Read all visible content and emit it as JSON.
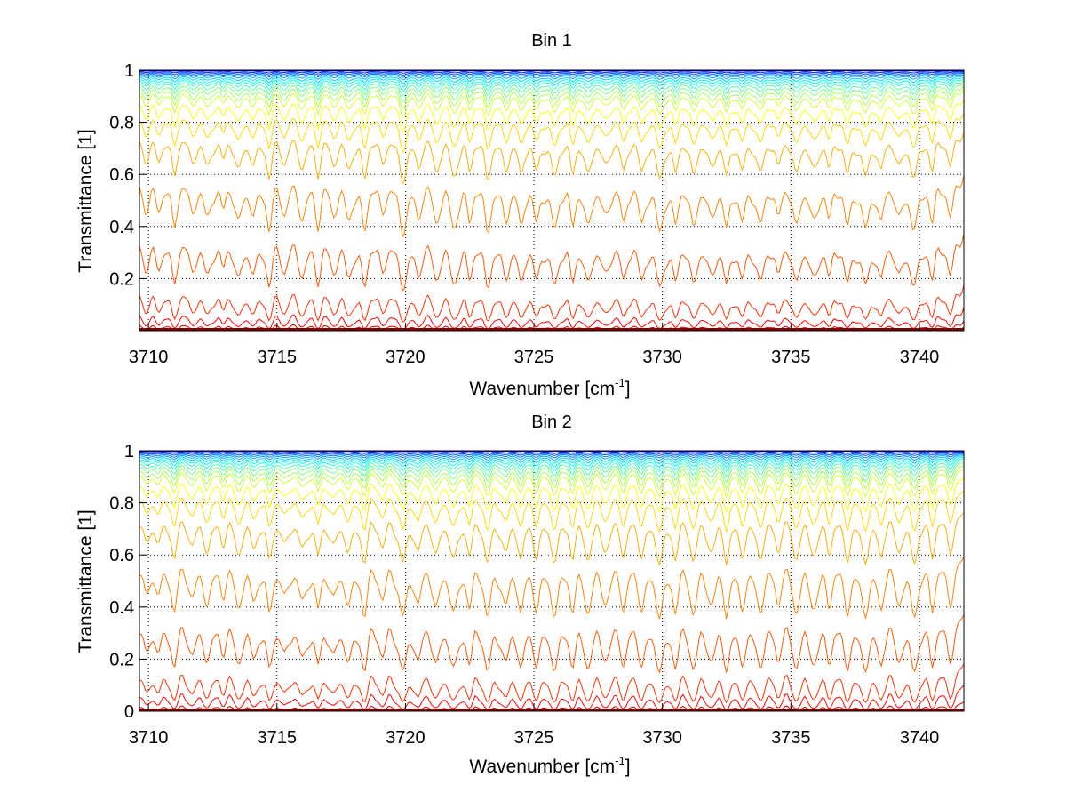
{
  "chart_data": [
    {
      "type": "line",
      "title": "Bin 1",
      "xlabel": "Wavenumber [cm",
      "xlabel_sup": "-1",
      "xlabel_end": "]",
      "ylabel": "Transmittance [1]",
      "xlim": [
        3709.65,
        3741.73
      ],
      "ylim": [
        0,
        1
      ],
      "xticks": [
        3710,
        3715,
        3720,
        3725,
        3730,
        3735,
        3740
      ],
      "xtick_labels": [
        "3710",
        "3715",
        "3720",
        "3725",
        "3730",
        "3735",
        "3740"
      ],
      "yticks": [
        0.2,
        0.4,
        0.6,
        0.8,
        1
      ],
      "ytick_labels": [
        "0.2",
        "0.4",
        "0.6",
        "0.8",
        "1"
      ],
      "grid": "dotted",
      "n_series": 22,
      "series_scale": [
        0.001,
        0.003,
        0.006,
        0.01,
        0.015,
        0.02,
        0.028,
        0.036,
        0.046,
        0.058,
        0.072,
        0.09,
        0.11,
        0.14,
        0.18,
        0.27,
        0.45,
        0.8,
        1.5,
        2.4,
        3.3,
        4.6
      ],
      "series_baseline": [
        1.0,
        0.998,
        0.996,
        0.993,
        0.99,
        0.986,
        0.982,
        0.977,
        0.972,
        0.965,
        0.957,
        0.947,
        0.935,
        0.9,
        0.85,
        0.78,
        0.62,
        0.4,
        0.2,
        0.11,
        0.05,
        0.02
      ],
      "colormap": "jet-reversed"
    },
    {
      "type": "line",
      "title": "Bin 2",
      "xlabel": "Wavenumber [cm",
      "xlabel_sup": "-1",
      "xlabel_end": "]",
      "ylabel": "Transmittance [1]",
      "xlim": [
        3709.65,
        3741.73
      ],
      "ylim": [
        0,
        1
      ],
      "xticks": [
        3710,
        3715,
        3720,
        3725,
        3730,
        3735,
        3740
      ],
      "xtick_labels": [
        "3710",
        "3715",
        "3720",
        "3725",
        "3730",
        "3735",
        "3740"
      ],
      "yticks": [
        0,
        0.2,
        0.4,
        0.6,
        0.8,
        1
      ],
      "ytick_labels": [
        "0",
        "0.2",
        "0.4",
        "0.6",
        "0.8",
        "1"
      ],
      "grid": "dotted",
      "n_series": 22,
      "series_scale": [
        0.001,
        0.003,
        0.006,
        0.01,
        0.015,
        0.02,
        0.028,
        0.036,
        0.046,
        0.058,
        0.072,
        0.09,
        0.11,
        0.14,
        0.18,
        0.27,
        0.45,
        0.8,
        1.5,
        2.4,
        3.3,
        4.6
      ],
      "series_baseline": [
        1.0,
        0.998,
        0.996,
        0.993,
        0.99,
        0.986,
        0.982,
        0.977,
        0.972,
        0.965,
        0.957,
        0.947,
        0.935,
        0.9,
        0.85,
        0.77,
        0.6,
        0.38,
        0.19,
        0.11,
        0.04,
        0.01
      ],
      "colormap": "jet-reversed"
    }
  ],
  "line_centers": [
    3709.9,
    3710.4,
    3711.0,
    3711.7,
    3712.3,
    3712.9,
    3713.5,
    3714.1,
    3714.7,
    3715.3,
    3716.0,
    3716.6,
    3717.2,
    3717.8,
    3718.4,
    3719.1,
    3719.9,
    3720.5,
    3721.2,
    3721.9,
    3722.5,
    3723.2,
    3723.9,
    3724.5,
    3725.1,
    3725.8,
    3726.5,
    3727.1,
    3727.8,
    3728.5,
    3729.2,
    3729.9,
    3730.5,
    3731.2,
    3731.9,
    3732.5,
    3733.1,
    3733.8,
    3734.5,
    3735.2,
    3735.9,
    3736.5,
    3737.2,
    3737.9,
    3738.5,
    3739.2,
    3739.8,
    3740.5,
    3741.2
  ],
  "line_strengths": [
    0.6,
    0.5,
    0.9,
    0.6,
    0.7,
    0.5,
    0.8,
    0.6,
    0.9,
    0.6,
    0.7,
    0.8,
    0.6,
    0.7,
    0.95,
    0.6,
    1.0,
    0.7,
    0.8,
    0.9,
    0.7,
    0.95,
    0.7,
    0.85,
    0.75,
    0.9,
    0.8,
    0.9,
    0.7,
    0.85,
    0.8,
    0.95,
    0.8,
    0.9,
    0.7,
    0.9,
    0.75,
    0.85,
    0.7,
    0.9,
    0.8,
    0.7,
    0.85,
    0.9,
    0.8,
    0.7,
    0.95,
    0.8,
    0.75
  ]
}
